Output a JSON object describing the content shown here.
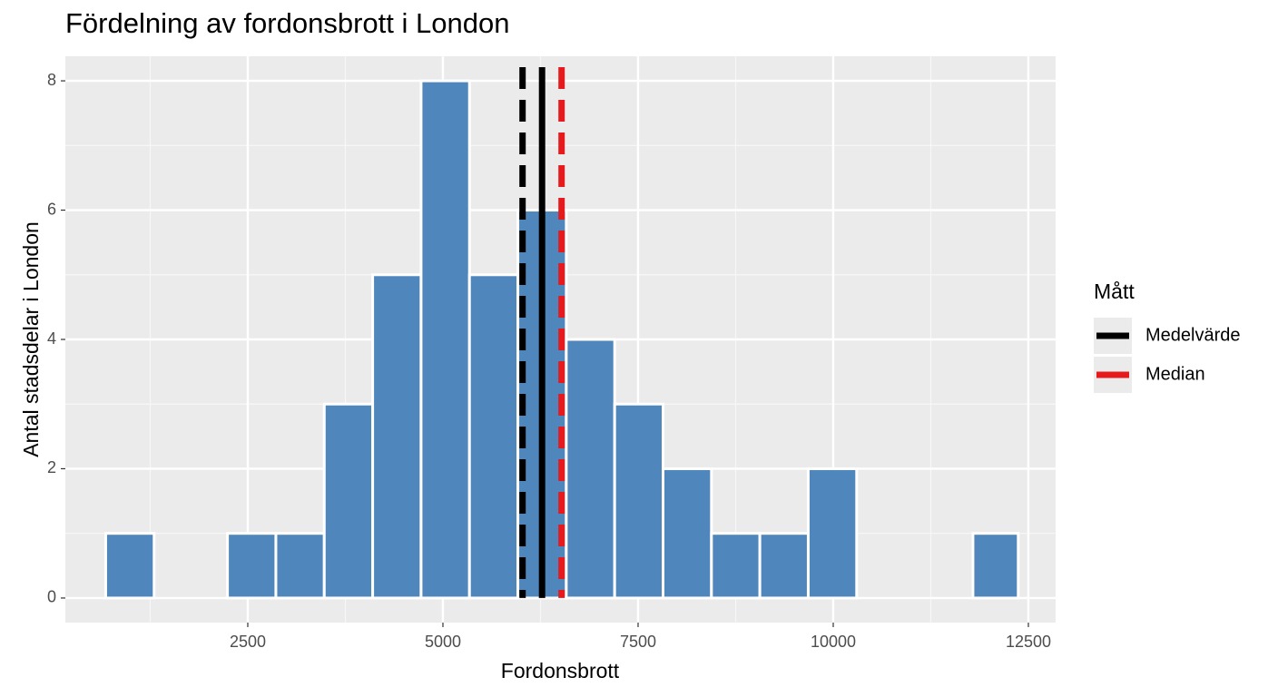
{
  "chart_data": {
    "type": "histogram",
    "title": "Fördelning av fordonsbrott i London",
    "x_label": "Fordonsbrott",
    "y_label": "Antal stadsdelar i London",
    "bins": [
      680,
      1300,
      2240,
      2860,
      3480,
      4100,
      4720,
      5340,
      5960,
      6580,
      7200,
      7820,
      8440,
      9060,
      9680,
      10300,
      11790,
      12370
    ],
    "counts": [
      1,
      0,
      1,
      1,
      3,
      5,
      8,
      5,
      6,
      4,
      3,
      2,
      1,
      1,
      2,
      0,
      1
    ],
    "color": "#4f86bc",
    "vlines": [
      {
        "name": "Medelvärde",
        "value": 6020,
        "color": "#000000",
        "dashed": true
      },
      {
        "name": "Median",
        "value": 6520,
        "color": "#e41a1c",
        "dashed": true
      },
      {
        "value": 6270,
        "color": "#000000",
        "dashed": false
      }
    ],
    "legend_title": "Mått",
    "legend_position": "right",
    "xlim": [
      163,
      12849
    ],
    "ylim": [
      -0.38,
      8.38
    ],
    "xticks": [
      2500,
      5000,
      7500,
      10000,
      12500
    ],
    "yticks": [
      0,
      2,
      4,
      6,
      8
    ],
    "grid": true
  }
}
